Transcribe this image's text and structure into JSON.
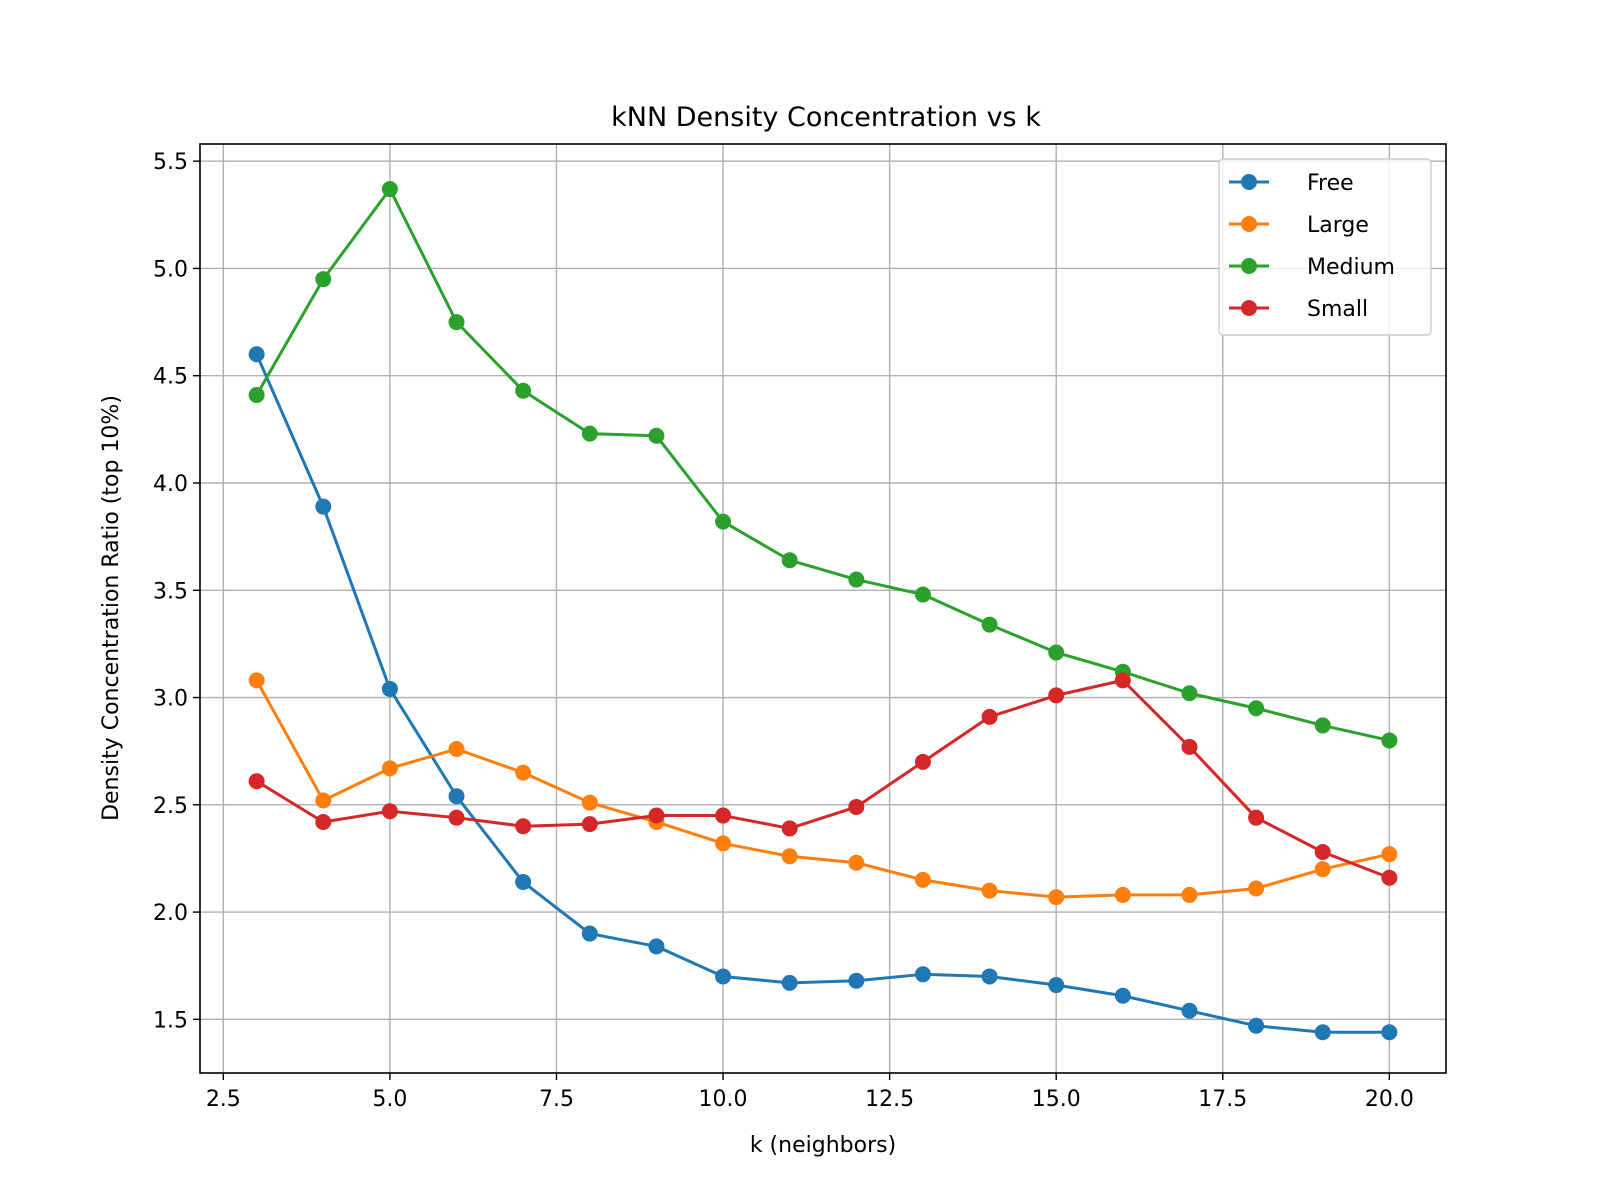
{
  "chart_data": {
    "type": "line",
    "title": "kNN Density Concentration vs k",
    "xlabel": "k (neighbors)",
    "ylabel": "Density Concentration Ratio (top 10%)",
    "xlim": [
      2.15,
      20.85
    ],
    "ylim": [
      1.25,
      5.58
    ],
    "xticks": [
      2.5,
      5.0,
      7.5,
      10.0,
      12.5,
      15.0,
      17.5,
      20.0
    ],
    "xtick_labels": [
      "2.5",
      "5.0",
      "7.5",
      "10.0",
      "12.5",
      "15.0",
      "17.5",
      "20.0"
    ],
    "yticks": [
      1.5,
      2.0,
      2.5,
      3.0,
      3.5,
      4.0,
      4.5,
      5.0,
      5.5
    ],
    "ytick_labels": [
      "1.5",
      "2.0",
      "2.5",
      "3.0",
      "3.5",
      "4.0",
      "4.5",
      "5.0",
      "5.5"
    ],
    "grid": true,
    "legend_position": "top-right",
    "x": [
      3,
      4,
      5,
      6,
      7,
      8,
      9,
      10,
      11,
      12,
      13,
      14,
      15,
      16,
      17,
      18,
      19,
      20
    ],
    "series": [
      {
        "name": "Free",
        "color": "#1f77b4",
        "values": [
          4.6,
          3.89,
          3.04,
          2.54,
          2.14,
          1.9,
          1.84,
          1.7,
          1.67,
          1.68,
          1.71,
          1.7,
          1.66,
          1.61,
          1.54,
          1.47,
          1.44,
          1.44
        ]
      },
      {
        "name": "Large",
        "color": "#ff7f0e",
        "values": [
          3.08,
          2.52,
          2.67,
          2.76,
          2.65,
          2.51,
          2.42,
          2.32,
          2.26,
          2.23,
          2.15,
          2.1,
          2.07,
          2.08,
          2.08,
          2.11,
          2.2,
          2.27
        ]
      },
      {
        "name": "Medium",
        "color": "#2ca02c",
        "values": [
          4.41,
          4.95,
          5.37,
          4.75,
          4.43,
          4.23,
          4.22,
          3.82,
          3.64,
          3.55,
          3.48,
          3.34,
          3.21,
          3.12,
          3.02,
          2.95,
          2.87,
          2.8
        ]
      },
      {
        "name": "Small",
        "color": "#d62728",
        "values": [
          2.61,
          2.42,
          2.47,
          2.44,
          2.4,
          2.41,
          2.45,
          2.45,
          2.39,
          2.49,
          2.7,
          2.91,
          3.01,
          3.08,
          2.77,
          2.44,
          2.28,
          2.16
        ]
      }
    ]
  }
}
